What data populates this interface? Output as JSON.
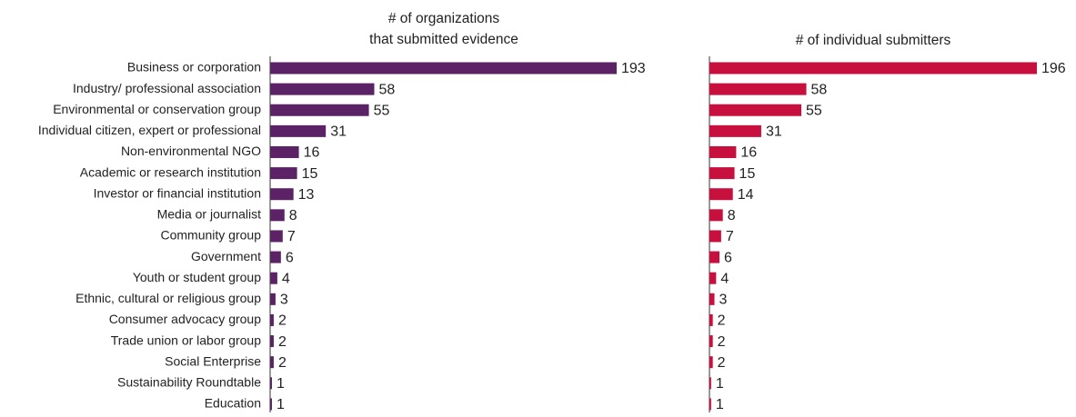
{
  "chart_data": [
    {
      "type": "hbar",
      "title": [
        "# of organizations",
        "that submitted evidence"
      ],
      "color": "#5b2266",
      "categories": [
        "Business or corporation",
        "Industry/ professional association",
        "Environmental or conservation group",
        "Individual citizen, expert or professional",
        "Non-environmental NGO",
        "Academic or research institution",
        "Investor or financial institution",
        "Media or journalist",
        "Community group",
        "Government",
        "Youth or student group",
        "Ethnic, cultural or religious group",
        "Consumer advocacy group",
        "Trade union or labor group",
        "Social Enterprise",
        "Sustainability Roundtable",
        "Education"
      ],
      "values": [
        193,
        58,
        55,
        31,
        16,
        15,
        13,
        8,
        7,
        6,
        4,
        3,
        2,
        2,
        2,
        1,
        1
      ]
    },
    {
      "type": "hbar",
      "title": [
        "# of individual submitters"
      ],
      "color": "#c8103e",
      "values": [
        196,
        58,
        55,
        31,
        16,
        15,
        14,
        8,
        7,
        6,
        4,
        3,
        2,
        2,
        2,
        1,
        1
      ]
    }
  ]
}
